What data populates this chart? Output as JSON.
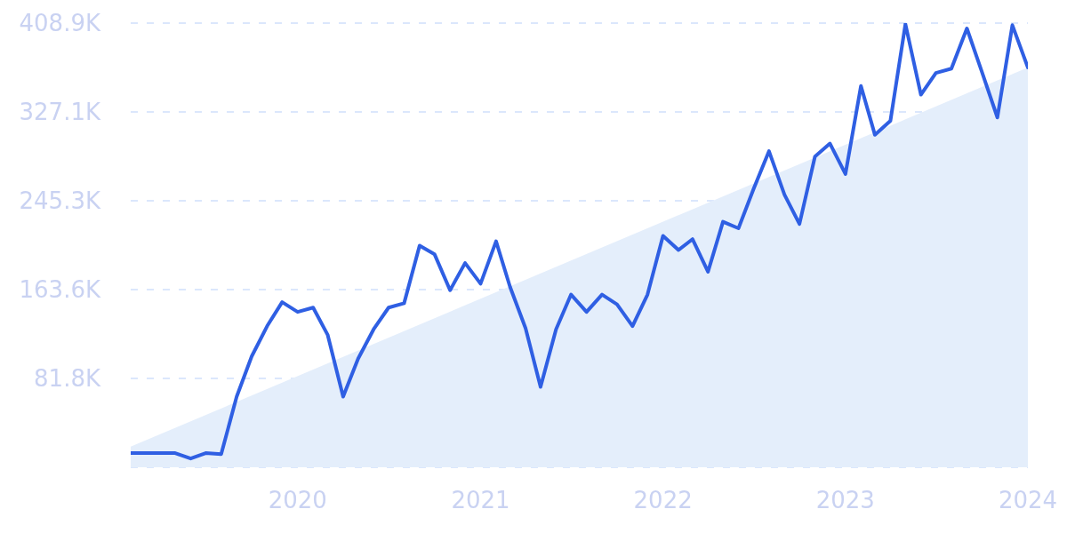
{
  "chart_data": {
    "type": "line",
    "x": [
      "2019-02",
      "2019-03",
      "2019-04",
      "2019-05",
      "2019-06",
      "2019-07",
      "2019-08",
      "2019-09",
      "2019-10",
      "2019-11",
      "2019-12",
      "2020-01",
      "2020-02",
      "2020-03",
      "2020-04",
      "2020-05",
      "2020-06",
      "2020-07",
      "2020-08",
      "2020-09",
      "2020-10",
      "2020-11",
      "2020-12",
      "2021-01",
      "2021-02",
      "2021-03",
      "2021-04",
      "2021-05",
      "2021-06",
      "2021-07",
      "2021-08",
      "2021-09",
      "2021-10",
      "2021-11",
      "2021-12",
      "2022-01",
      "2022-02",
      "2022-03",
      "2022-04",
      "2022-05",
      "2022-06",
      "2022-07",
      "2022-08",
      "2022-09",
      "2022-10",
      "2022-11",
      "2022-12",
      "2023-01",
      "2023-02",
      "2023-03",
      "2023-04",
      "2023-05",
      "2023-06",
      "2023-07",
      "2023-08",
      "2023-09",
      "2023-10",
      "2023-11",
      "2023-12",
      "2024-01"
    ],
    "series": [
      {
        "type": "area",
        "color": "#e4eefb",
        "x": [
          "2019-02",
          "2024-01"
        ],
        "values": [
          19000,
          368000
        ]
      },
      {
        "color": "#2f5fe3",
        "values": [
          13000,
          13000,
          13000,
          13000,
          8000,
          13000,
          12000,
          65000,
          102000,
          130000,
          152000,
          143000,
          147000,
          122000,
          65000,
          100000,
          127000,
          147000,
          151000,
          204000,
          196000,
          163000,
          188000,
          169000,
          208000,
          166000,
          128000,
          74000,
          127000,
          159000,
          143000,
          159000,
          150000,
          130000,
          159000,
          213000,
          200000,
          210000,
          180000,
          226000,
          220000,
          256000,
          291000,
          251000,
          224000,
          286000,
          298000,
          270000,
          351000,
          306000,
          319000,
          408000,
          343000,
          363000,
          367000,
          404000,
          364000,
          322000,
          407000,
          368000
        ]
      }
    ],
    "xlim": [
      "2019-02",
      "2024-01"
    ],
    "xticks": [
      "2020",
      "2021",
      "2022",
      "2023",
      "2024"
    ],
    "ylim": [
      0,
      408900
    ],
    "yticks": [
      {
        "value": 81800,
        "label": "81.8K"
      },
      {
        "value": 163600,
        "label": "163.6K"
      },
      {
        "value": 245300,
        "label": "245.3K"
      },
      {
        "value": 327100,
        "label": "327.1K"
      },
      {
        "value": 408900,
        "label": "408.9K"
      }
    ],
    "grid": "y",
    "marker": "none",
    "line_style": "solid"
  }
}
